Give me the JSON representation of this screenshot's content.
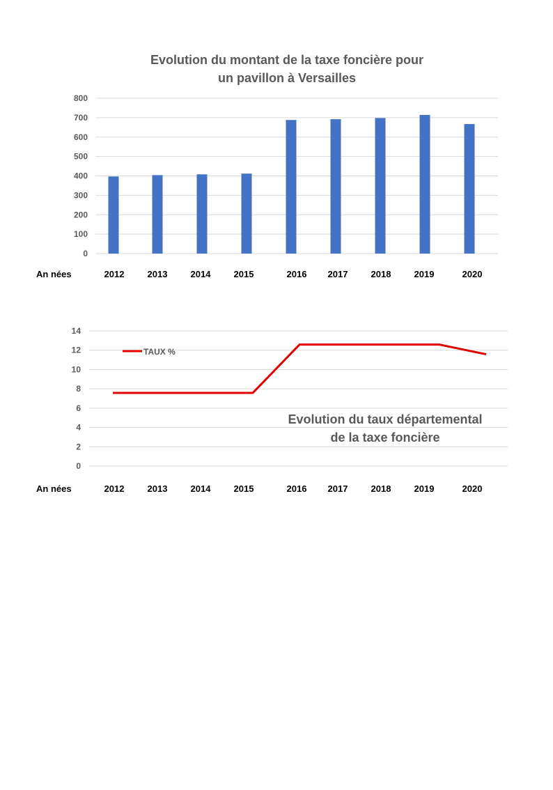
{
  "charts": {
    "bar_title_line1": "Evolution  du montant de la taxe foncière pour",
    "bar_title_line2": "un pavillon à Versailles",
    "line_title_line1": "Evolution  du taux départemental",
    "line_title_line2": "de la taxe foncière",
    "x_axis_prefix": "An nées",
    "bar_color": "#4472C4",
    "line_color": "#E00000"
  },
  "chart_data": [
    {
      "type": "bar",
      "title": "Evolution  du montant de la taxe foncière pour un pavillon à Versailles",
      "xlabel": "An nées",
      "ylabel": "",
      "categories": [
        "2012",
        "2013",
        "2014",
        "2015",
        "2016",
        "2017",
        "2018",
        "2019",
        "2020"
      ],
      "values": [
        397,
        404,
        408,
        412,
        688,
        692,
        698,
        714,
        667
      ],
      "ylim": [
        0,
        800
      ],
      "yticks": [
        0,
        100,
        200,
        300,
        400,
        500,
        600,
        700,
        800
      ],
      "grid": true,
      "color": "#4472C4"
    },
    {
      "type": "line",
      "title": "Evolution  du taux départemental de la taxe foncière",
      "xlabel": "An nées",
      "ylabel": "",
      "categories": [
        "2012",
        "2013",
        "2014",
        "2015",
        "2016",
        "2017",
        "2018",
        "2019",
        "2020"
      ],
      "series": [
        {
          "name": "TAUX %",
          "values": [
            7.58,
            7.58,
            7.58,
            7.58,
            12.58,
            12.58,
            12.58,
            12.58,
            11.58
          ]
        }
      ],
      "ylim": [
        0,
        14
      ],
      "yticks": [
        0,
        2,
        4,
        6,
        8,
        10,
        12,
        14
      ],
      "grid": true,
      "legend": "top-left",
      "color": "#E00000"
    }
  ]
}
